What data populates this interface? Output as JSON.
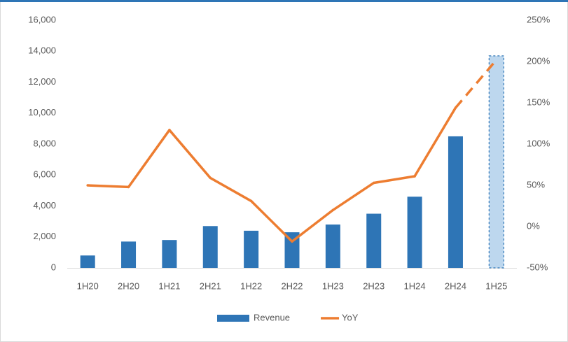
{
  "chart_data": {
    "type": "bar-line",
    "categories": [
      "1H20",
      "2H20",
      "1H21",
      "2H21",
      "1H22",
      "2H22",
      "1H23",
      "2H23",
      "1H24",
      "2H24",
      "1H25"
    ],
    "series": [
      {
        "name": "Revenue",
        "color": "#2e75b6",
        "type": "bar",
        "axis": "y",
        "values": [
          800,
          1700,
          1800,
          2700,
          2400,
          2300,
          2800,
          3500,
          4600,
          8500,
          13700
        ]
      },
      {
        "name": "YoY",
        "color": "#ed7d31",
        "type": "line",
        "axis": "y2",
        "values": [
          50,
          48,
          117,
          59,
          31,
          -18,
          20,
          53,
          61,
          144,
          202
        ]
      }
    ],
    "projected_count": 1,
    "projected_color": "#bdd7ee",
    "ylim": [
      0,
      16000
    ],
    "yticks": [
      0,
      {
        "value": 2000,
        "label": "2,000"
      },
      {
        "value": 4000,
        "label": "4,000"
      },
      {
        "value": 6000,
        "label": "6,000"
      },
      {
        "value": 8000,
        "label": "8,000"
      },
      {
        "value": 10000,
        "label": "10,000"
      },
      {
        "value": 12000,
        "label": "12,000"
      },
      {
        "value": 14000,
        "label": "14,000"
      },
      {
        "value": 16000,
        "label": "16,000"
      }
    ],
    "y2lim": [
      -50,
      250
    ],
    "y2ticks": [
      {
        "value": -50,
        "label": "-50%"
      },
      {
        "value": 0,
        "label": "0%"
      },
      {
        "value": 50,
        "label": "50%"
      },
      {
        "value": 100,
        "label": "100%"
      },
      {
        "value": 150,
        "label": "150%"
      },
      {
        "value": 200,
        "label": "200%"
      },
      {
        "value": 250,
        "label": "250%"
      }
    ],
    "grid": false,
    "legend": "bottom"
  }
}
